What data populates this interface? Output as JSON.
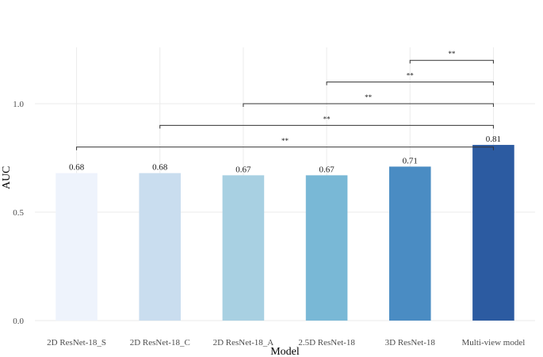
{
  "chart_data": {
    "type": "bar",
    "title": "",
    "xlabel": "Model",
    "ylabel": "AUC",
    "ylim": [
      0,
      1.26
    ],
    "y_ticks": [
      0.0,
      0.5,
      1.0
    ],
    "y_tick_labels": [
      "0.0",
      "0.5",
      "1.0"
    ],
    "grid": true,
    "legend": "none",
    "categories": [
      "2D ResNet-18_S",
      "2D ResNet-18_C",
      "2D ResNet-18_A",
      "2.5D ResNet-18",
      "3D ResNet-18",
      "Multi-view model"
    ],
    "values": [
      0.68,
      0.68,
      0.67,
      0.67,
      0.71,
      0.81
    ],
    "value_labels": [
      "0.68",
      "0.68",
      "0.67",
      "0.67",
      "0.71",
      "0.81"
    ],
    "colors": [
      "#eef3fc",
      "#c9ddef",
      "#a8d0e2",
      "#79b8d6",
      "#4a8cc3",
      "#2c5ba1"
    ],
    "significance": [
      {
        "from": "3D ResNet-18",
        "to": "Multi-view model",
        "y": 1.2,
        "label": "**"
      },
      {
        "from": "2.5D ResNet-18",
        "to": "Multi-view model",
        "y": 1.1,
        "label": "**"
      },
      {
        "from": "2D ResNet-18_A",
        "to": "Multi-view model",
        "y": 1.0,
        "label": "**"
      },
      {
        "from": "2D ResNet-18_C",
        "to": "Multi-view model",
        "y": 0.9,
        "label": "**"
      },
      {
        "from": "2D ResNet-18_S",
        "to": "Multi-view model",
        "y": 0.8,
        "label": "**"
      }
    ]
  }
}
